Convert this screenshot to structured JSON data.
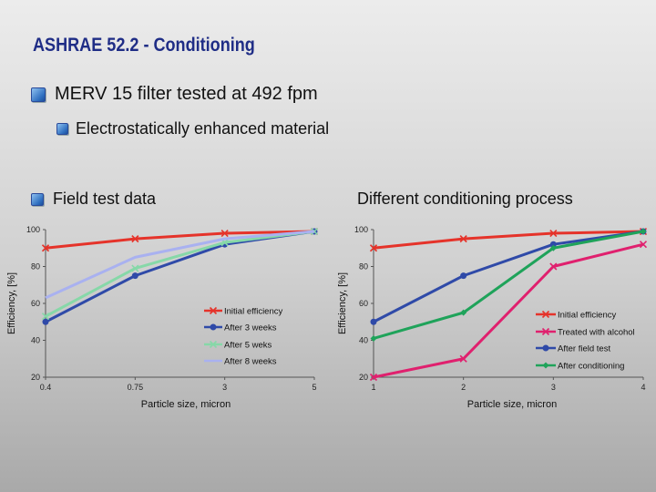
{
  "slide": {
    "title": "ASHRAE 52.2 - Conditioning",
    "bullet1": "MERV 15 filter tested at 492 fpm",
    "bullet2": "Electrostatically enhanced material",
    "bullet3": "Field test data",
    "subheading": "Different conditioning process"
  },
  "colors": {
    "red": "#e5332a",
    "navy": "#2f4aa8",
    "lightgreen": "#86d8a8",
    "lavender": "#a9b1f0",
    "magenta": "#e0206e",
    "green": "#1fa35a"
  },
  "chart_data": [
    {
      "type": "line",
      "categories": [
        "0.4",
        "0.75",
        "3",
        "5"
      ],
      "ylim": [
        20,
        100
      ],
      "yticks": [
        "20",
        "40",
        "60",
        "80",
        "100"
      ],
      "xlabel": "Particle size, micron",
      "ylabel": "Efficiency, [%]",
      "legend": "inside-bottom-right",
      "series": [
        {
          "name": "Initial efficiency",
          "color": "#e5332a",
          "marker": "x",
          "values": [
            90,
            95,
            98,
            99
          ]
        },
        {
          "name": "After 3 weeks",
          "color": "#2f4aa8",
          "marker": "dot",
          "values": [
            50,
            75,
            92,
            99
          ]
        },
        {
          "name": "After 5 weks",
          "color": "#86d8a8",
          "marker": "x",
          "values": [
            53,
            79,
            93,
            99
          ]
        },
        {
          "name": "After 8 weeks",
          "color": "#a9b1f0",
          "marker": "none",
          "values": [
            63,
            85,
            95,
            99
          ]
        }
      ]
    },
    {
      "type": "line",
      "categories": [
        "1",
        "2",
        "3",
        "4"
      ],
      "ylim": [
        20,
        100
      ],
      "yticks": [
        "20",
        "40",
        "60",
        "80",
        "100"
      ],
      "xlabel": "Particle size, micron",
      "ylabel": "Efficiency, [%]",
      "legend": "inside-bottom-right",
      "series": [
        {
          "name": "Initial efficiency",
          "color": "#e5332a",
          "marker": "x",
          "values": [
            90,
            95,
            98,
            99
          ]
        },
        {
          "name": "Treated with alcohol",
          "color": "#e0206e",
          "marker": "x",
          "values": [
            20,
            30,
            80,
            92
          ]
        },
        {
          "name": "After field test",
          "color": "#2f4aa8",
          "marker": "dot",
          "values": [
            50,
            75,
            92,
            99
          ]
        },
        {
          "name": "After conditioning",
          "color": "#1fa35a",
          "marker": "diamond",
          "values": [
            41,
            55,
            90,
            99
          ]
        }
      ]
    }
  ]
}
